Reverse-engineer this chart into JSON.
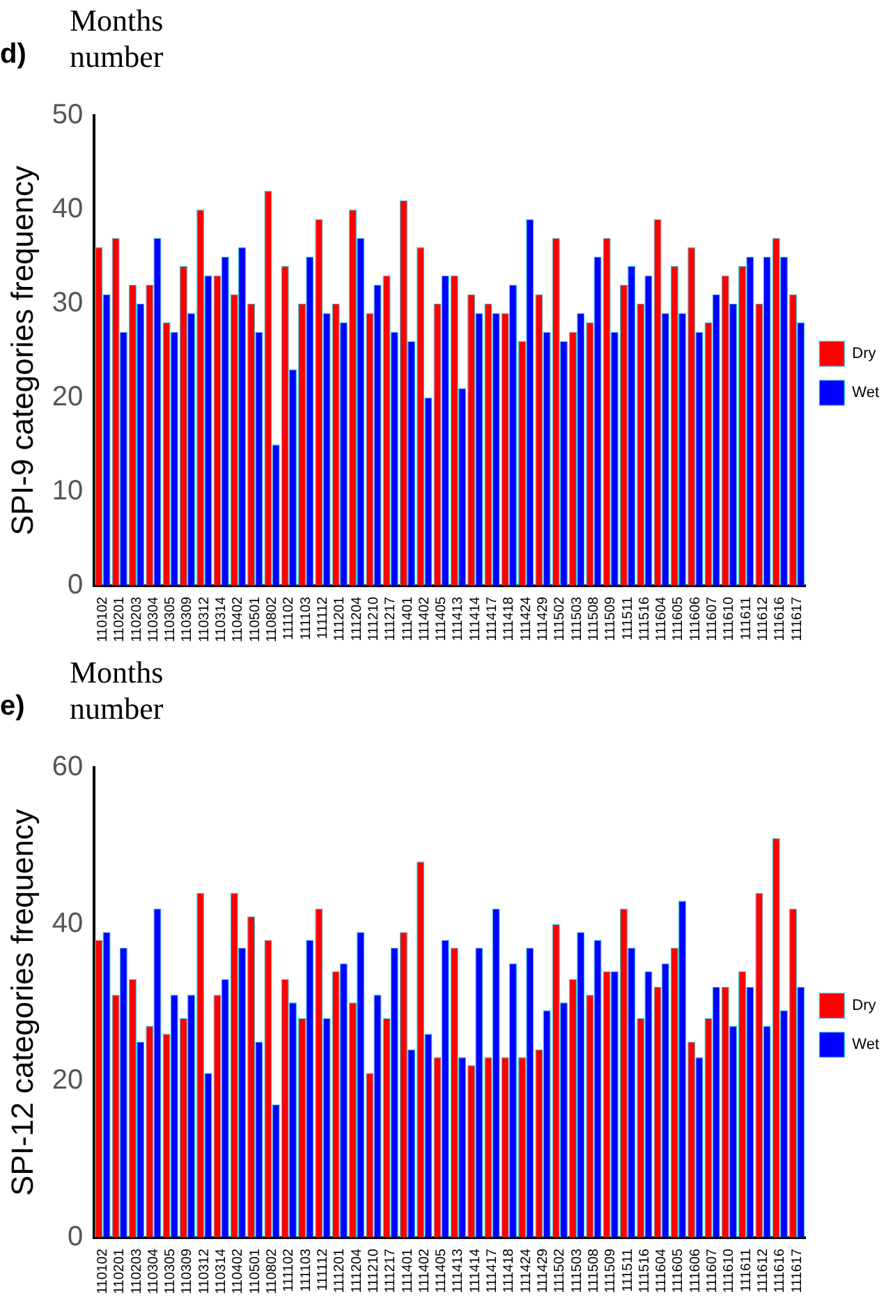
{
  "chart_data": [
    {
      "type": "bar",
      "title": "d)",
      "xlabel": "Months number",
      "ylabel": "SPI-9 categories frequency",
      "categories": [
        "110102",
        "110201",
        "110203",
        "110304",
        "110305",
        "110309",
        "110312",
        "110314",
        "110402",
        "110501",
        "110802",
        "111102",
        "111103",
        "111112",
        "111201",
        "111204",
        "111210",
        "111217",
        "111401",
        "111402",
        "111405",
        "111413",
        "111414",
        "111417",
        "111418",
        "111424",
        "111429",
        "111502",
        "111503",
        "111508",
        "111509",
        "111511",
        "111516",
        "111604",
        "111605",
        "111606",
        "111607",
        "111610",
        "111611",
        "111612",
        "111616",
        "111617"
      ],
      "series": [
        {
          "name": "Dry",
          "color": "#ff0000",
          "values": [
            36,
            37,
            32,
            32,
            28,
            34,
            40,
            33,
            31,
            30,
            42,
            34,
            30,
            39,
            30,
            40,
            29,
            33,
            41,
            36,
            30,
            33,
            31,
            30,
            29,
            26,
            31,
            37,
            27,
            28,
            37,
            32,
            30,
            39,
            34,
            36,
            28,
            33,
            34,
            30,
            37,
            31
          ]
        },
        {
          "name": "Wet",
          "color": "#0000ff",
          "values": [
            31,
            27,
            30,
            37,
            27,
            29,
            33,
            35,
            36,
            27,
            15,
            23,
            35,
            29,
            28,
            37,
            32,
            27,
            26,
            20,
            33,
            21,
            29,
            29,
            32,
            39,
            27,
            26,
            29,
            35,
            27,
            34,
            33,
            29,
            29,
            27,
            31,
            30,
            35,
            35,
            35,
            28
          ]
        }
      ],
      "ylim": [
        0,
        50
      ],
      "yticks": [
        0,
        10,
        20,
        30,
        40,
        50
      ],
      "grid": false,
      "legend": "right"
    },
    {
      "type": "bar",
      "title": "e)",
      "xlabel": "Months number",
      "ylabel": "SPI-12 categories frequency",
      "categories": [
        "110102",
        "110201",
        "110203",
        "110304",
        "110305",
        "110309",
        "110312",
        "110314",
        "110402",
        "110501",
        "110802",
        "111102",
        "111103",
        "111112",
        "111201",
        "111204",
        "111210",
        "111217",
        "111401",
        "111402",
        "111405",
        "111413",
        "111414",
        "111417",
        "111418",
        "111424",
        "111429",
        "111502",
        "111503",
        "111508",
        "111509",
        "111511",
        "111516",
        "111604",
        "111605",
        "111606",
        "111607",
        "111610",
        "111611",
        "111612",
        "111616",
        "111617"
      ],
      "series": [
        {
          "name": "Dry",
          "color": "#ff0000",
          "values": [
            38,
            31,
            33,
            27,
            26,
            28,
            44,
            31,
            44,
            41,
            38,
            33,
            28,
            42,
            34,
            30,
            21,
            28,
            39,
            48,
            23,
            37,
            22,
            23,
            23,
            23,
            24,
            40,
            33,
            31,
            34,
            42,
            28,
            32,
            37,
            25,
            28,
            32,
            34,
            44,
            51,
            42
          ]
        },
        {
          "name": "Wet",
          "color": "#0000ff",
          "values": [
            39,
            37,
            25,
            42,
            31,
            31,
            21,
            33,
            37,
            25,
            17,
            30,
            38,
            28,
            35,
            39,
            31,
            37,
            24,
            26,
            38,
            23,
            37,
            42,
            35,
            37,
            29,
            30,
            39,
            38,
            34,
            37,
            34,
            35,
            43,
            23,
            32,
            27,
            32,
            27,
            29,
            32
          ]
        }
      ],
      "ylim": [
        0,
        60
      ],
      "yticks": [
        0,
        20,
        40,
        60
      ],
      "grid": false,
      "legend": "right"
    }
  ]
}
